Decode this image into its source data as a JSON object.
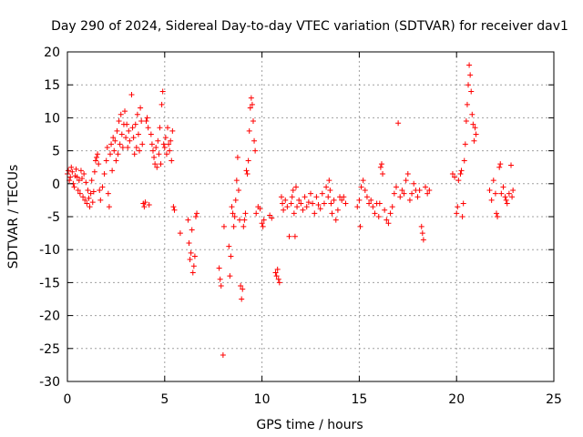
{
  "chart_data": {
    "type": "scatter",
    "title": "Day 290 of 2024, Sidereal Day-to-day VTEC variation (SDTVAR) for receiver dav1",
    "xlabel": "GPS time / hours",
    "ylabel": "SDTVAR / TECUs",
    "xlim": [
      0,
      25
    ],
    "ylim": [
      -30,
      20
    ],
    "xticks": [
      0,
      5,
      10,
      15,
      20,
      25
    ],
    "yticks": [
      -30,
      -25,
      -20,
      -15,
      -10,
      -5,
      0,
      5,
      10,
      15,
      20
    ],
    "grid": true,
    "marker": "+",
    "color": "#ff0000",
    "series": [
      {
        "name": "SDTVAR",
        "points": [
          [
            0.0,
            1.5
          ],
          [
            0.05,
            2.0
          ],
          [
            0.1,
            0.5
          ],
          [
            0.15,
            1.0
          ],
          [
            0.2,
            2.5
          ],
          [
            0.25,
            1.8
          ],
          [
            0.3,
            0.0
          ],
          [
            0.35,
            -0.5
          ],
          [
            0.4,
            1.2
          ],
          [
            0.45,
            2.2
          ],
          [
            0.5,
            1.0
          ],
          [
            0.55,
            -1.0
          ],
          [
            0.6,
            0.5
          ],
          [
            0.65,
            -1.5
          ],
          [
            0.7,
            2.0
          ],
          [
            0.75,
            0.8
          ],
          [
            0.8,
            -2.0
          ],
          [
            0.85,
            1.5
          ],
          [
            0.9,
            -2.5
          ],
          [
            0.95,
            0.2
          ],
          [
            1.0,
            -3.0
          ],
          [
            1.05,
            -1.0
          ],
          [
            1.1,
            -2.2
          ],
          [
            1.15,
            -3.5
          ],
          [
            1.2,
            -1.5
          ],
          [
            1.25,
            0.5
          ],
          [
            1.3,
            -2.8
          ],
          [
            1.35,
            -1.2
          ],
          [
            1.4,
            1.8
          ],
          [
            1.45,
            3.5
          ],
          [
            1.5,
            4.0
          ],
          [
            1.55,
            4.5
          ],
          [
            1.6,
            3.0
          ],
          [
            1.65,
            -1.0
          ],
          [
            1.7,
            -2.5
          ],
          [
            1.8,
            -0.5
          ],
          [
            1.9,
            1.5
          ],
          [
            2.0,
            3.5
          ],
          [
            2.05,
            5.5
          ],
          [
            2.1,
            -1.5
          ],
          [
            2.15,
            -3.5
          ],
          [
            2.2,
            4.5
          ],
          [
            2.25,
            6.0
          ],
          [
            2.3,
            2.0
          ],
          [
            2.35,
            7.0
          ],
          [
            2.4,
            5.0
          ],
          [
            2.45,
            6.5
          ],
          [
            2.5,
            3.5
          ],
          [
            2.55,
            8.0
          ],
          [
            2.6,
            4.5
          ],
          [
            2.65,
            9.5
          ],
          [
            2.7,
            6.0
          ],
          [
            2.75,
            10.5
          ],
          [
            2.8,
            7.5
          ],
          [
            2.85,
            5.5
          ],
          [
            2.9,
            9.0
          ],
          [
            2.95,
            11.0
          ],
          [
            3.0,
            7.0
          ],
          [
            3.05,
            9.0
          ],
          [
            3.1,
            5.5
          ],
          [
            3.15,
            8.0
          ],
          [
            3.2,
            6.5
          ],
          [
            3.3,
            13.5
          ],
          [
            3.35,
            8.5
          ],
          [
            3.4,
            7.0
          ],
          [
            3.45,
            4.5
          ],
          [
            3.5,
            9.0
          ],
          [
            3.55,
            5.5
          ],
          [
            3.6,
            10.5
          ],
          [
            3.65,
            7.5
          ],
          [
            3.7,
            5.0
          ],
          [
            3.75,
            11.5
          ],
          [
            3.8,
            9.5
          ],
          [
            3.85,
            6.0
          ],
          [
            3.9,
            -3.0
          ],
          [
            3.95,
            -3.5
          ],
          [
            4.0,
            -2.8
          ],
          [
            4.05,
            9.5
          ],
          [
            4.1,
            10.0
          ],
          [
            4.15,
            8.5
          ],
          [
            4.2,
            -3.2
          ],
          [
            4.3,
            7.5
          ],
          [
            4.35,
            6.0
          ],
          [
            4.4,
            5.0
          ],
          [
            4.45,
            4.0
          ],
          [
            4.5,
            3.0
          ],
          [
            4.55,
            5.5
          ],
          [
            4.6,
            2.5
          ],
          [
            4.65,
            6.5
          ],
          [
            4.7,
            4.5
          ],
          [
            4.75,
            8.5
          ],
          [
            4.8,
            3.0
          ],
          [
            4.85,
            12.0
          ],
          [
            4.9,
            14.0
          ],
          [
            4.95,
            6.0
          ],
          [
            5.0,
            5.5
          ],
          [
            5.05,
            7.0
          ],
          [
            5.1,
            4.5
          ],
          [
            5.15,
            8.5
          ],
          [
            5.2,
            6.0
          ],
          [
            5.25,
            5.0
          ],
          [
            5.3,
            6.5
          ],
          [
            5.35,
            3.5
          ],
          [
            5.4,
            8.0
          ],
          [
            5.45,
            -3.5
          ],
          [
            5.5,
            -4.0
          ],
          [
            5.8,
            -7.5
          ],
          [
            6.2,
            -5.5
          ],
          [
            6.25,
            -9.0
          ],
          [
            6.3,
            -11.5
          ],
          [
            6.35,
            -10.5
          ],
          [
            6.4,
            -7.0
          ],
          [
            6.45,
            -13.5
          ],
          [
            6.5,
            -12.5
          ],
          [
            6.55,
            -11.0
          ],
          [
            6.6,
            -5.0
          ],
          [
            6.65,
            -4.5
          ],
          [
            7.8,
            -12.8
          ],
          [
            7.85,
            -14.5
          ],
          [
            7.9,
            -15.5
          ],
          [
            8.0,
            -26.0
          ],
          [
            8.05,
            -6.5
          ],
          [
            8.3,
            -9.5
          ],
          [
            8.35,
            -14.0
          ],
          [
            8.4,
            -11.0
          ],
          [
            8.45,
            -3.5
          ],
          [
            8.5,
            -4.5
          ],
          [
            8.55,
            -6.5
          ],
          [
            8.6,
            -5.0
          ],
          [
            8.65,
            -2.5
          ],
          [
            8.7,
            0.5
          ],
          [
            8.75,
            4.0
          ],
          [
            8.8,
            -1.0
          ],
          [
            8.85,
            -5.5
          ],
          [
            8.9,
            -15.5
          ],
          [
            8.95,
            -17.5
          ],
          [
            9.0,
            -16.0
          ],
          [
            9.05,
            -6.5
          ],
          [
            9.1,
            -5.5
          ],
          [
            9.15,
            -4.5
          ],
          [
            9.2,
            2.0
          ],
          [
            9.25,
            1.5
          ],
          [
            9.3,
            3.5
          ],
          [
            9.35,
            8.0
          ],
          [
            9.4,
            11.5
          ],
          [
            9.45,
            13.0
          ],
          [
            9.5,
            12.0
          ],
          [
            9.55,
            9.5
          ],
          [
            9.6,
            6.5
          ],
          [
            9.65,
            5.0
          ],
          [
            9.7,
            -4.5
          ],
          [
            9.8,
            -3.5
          ],
          [
            9.9,
            -3.8
          ],
          [
            10.0,
            -6.0
          ],
          [
            10.05,
            -6.5
          ],
          [
            10.1,
            -5.5
          ],
          [
            10.4,
            -4.8
          ],
          [
            10.5,
            -5.2
          ],
          [
            10.7,
            -13.5
          ],
          [
            10.75,
            -14.0
          ],
          [
            10.8,
            -13.0
          ],
          [
            10.85,
            -14.5
          ],
          [
            10.9,
            -15.0
          ],
          [
            11.0,
            -2.0
          ],
          [
            11.05,
            -3.0
          ],
          [
            11.1,
            -4.0
          ],
          [
            11.2,
            -2.5
          ],
          [
            11.3,
            -3.5
          ],
          [
            11.4,
            -8.0
          ],
          [
            11.5,
            -3.0
          ],
          [
            11.55,
            -2.0
          ],
          [
            11.6,
            -1.0
          ],
          [
            11.65,
            -4.5
          ],
          [
            11.7,
            -8.0
          ],
          [
            11.75,
            -0.5
          ],
          [
            11.8,
            -3.5
          ],
          [
            11.9,
            -2.5
          ],
          [
            12.0,
            -3.0
          ],
          [
            12.1,
            -4.0
          ],
          [
            12.2,
            -2.0
          ],
          [
            12.3,
            -3.5
          ],
          [
            12.4,
            -2.8
          ],
          [
            12.5,
            -1.5
          ],
          [
            12.6,
            -3.0
          ],
          [
            12.7,
            -4.5
          ],
          [
            12.8,
            -2.0
          ],
          [
            12.9,
            -3.2
          ],
          [
            13.0,
            -3.8
          ],
          [
            13.1,
            -1.5
          ],
          [
            13.2,
            -3.0
          ],
          [
            13.3,
            -0.5
          ],
          [
            13.4,
            -2.0
          ],
          [
            13.45,
            0.5
          ],
          [
            13.5,
            -1.0
          ],
          [
            13.55,
            -3.0
          ],
          [
            13.6,
            -4.5
          ],
          [
            13.7,
            -2.5
          ],
          [
            13.8,
            -5.5
          ],
          [
            13.9,
            -4.0
          ],
          [
            14.0,
            -2.0
          ],
          [
            14.1,
            -2.5
          ],
          [
            14.2,
            -2.0
          ],
          [
            14.3,
            -3.0
          ],
          [
            14.9,
            -3.5
          ],
          [
            15.0,
            -2.5
          ],
          [
            15.05,
            -6.5
          ],
          [
            15.1,
            -0.5
          ],
          [
            15.2,
            0.5
          ],
          [
            15.3,
            -1.0
          ],
          [
            15.4,
            -2.0
          ],
          [
            15.5,
            -3.0
          ],
          [
            15.6,
            -2.5
          ],
          [
            15.7,
            -3.5
          ],
          [
            15.8,
            -4.5
          ],
          [
            15.9,
            -3.0
          ],
          [
            16.0,
            -5.0
          ],
          [
            16.05,
            -3.0
          ],
          [
            16.1,
            2.5
          ],
          [
            16.15,
            3.0
          ],
          [
            16.2,
            1.5
          ],
          [
            16.3,
            -4.0
          ],
          [
            16.4,
            -5.5
          ],
          [
            16.5,
            -6.0
          ],
          [
            16.6,
            -4.5
          ],
          [
            16.7,
            -3.5
          ],
          [
            16.8,
            -1.5
          ],
          [
            16.9,
            -0.5
          ],
          [
            17.0,
            9.2
          ],
          [
            17.1,
            -2.0
          ],
          [
            17.2,
            -1.0
          ],
          [
            17.3,
            -1.5
          ],
          [
            17.4,
            0.5
          ],
          [
            17.5,
            1.5
          ],
          [
            17.6,
            -2.5
          ],
          [
            17.7,
            -1.5
          ],
          [
            17.8,
            0.0
          ],
          [
            17.9,
            -1.0
          ],
          [
            18.0,
            -2.0
          ],
          [
            18.1,
            -1.0
          ],
          [
            18.2,
            -6.5
          ],
          [
            18.25,
            -7.5
          ],
          [
            18.3,
            -8.5
          ],
          [
            18.4,
            -0.5
          ],
          [
            18.5,
            -1.5
          ],
          [
            18.6,
            -1.0
          ],
          [
            19.8,
            1.5
          ],
          [
            19.9,
            1.0
          ],
          [
            20.0,
            -4.5
          ],
          [
            20.05,
            -3.5
          ],
          [
            20.1,
            0.5
          ],
          [
            20.2,
            1.5
          ],
          [
            20.25,
            2.0
          ],
          [
            20.3,
            -5.0
          ],
          [
            20.35,
            -3.0
          ],
          [
            20.4,
            3.5
          ],
          [
            20.45,
            6.0
          ],
          [
            20.5,
            9.5
          ],
          [
            20.55,
            12.0
          ],
          [
            20.6,
            15.0
          ],
          [
            20.65,
            18.0
          ],
          [
            20.7,
            16.5
          ],
          [
            20.75,
            14.0
          ],
          [
            20.8,
            10.5
          ],
          [
            20.85,
            9.0
          ],
          [
            20.9,
            6.5
          ],
          [
            20.95,
            8.5
          ],
          [
            21.0,
            7.5
          ],
          [
            21.7,
            -1.0
          ],
          [
            21.8,
            -2.5
          ],
          [
            21.9,
            0.5
          ],
          [
            22.0,
            -1.5
          ],
          [
            22.05,
            -4.5
          ],
          [
            22.1,
            -5.0
          ],
          [
            22.2,
            2.5
          ],
          [
            22.25,
            3.0
          ],
          [
            22.3,
            -1.5
          ],
          [
            22.4,
            -0.5
          ],
          [
            22.5,
            -2.0
          ],
          [
            22.55,
            -2.5
          ],
          [
            22.6,
            -3.0
          ],
          [
            22.7,
            -1.5
          ],
          [
            22.8,
            2.8
          ],
          [
            22.85,
            -2.0
          ],
          [
            22.9,
            -1.0
          ]
        ]
      }
    ]
  }
}
